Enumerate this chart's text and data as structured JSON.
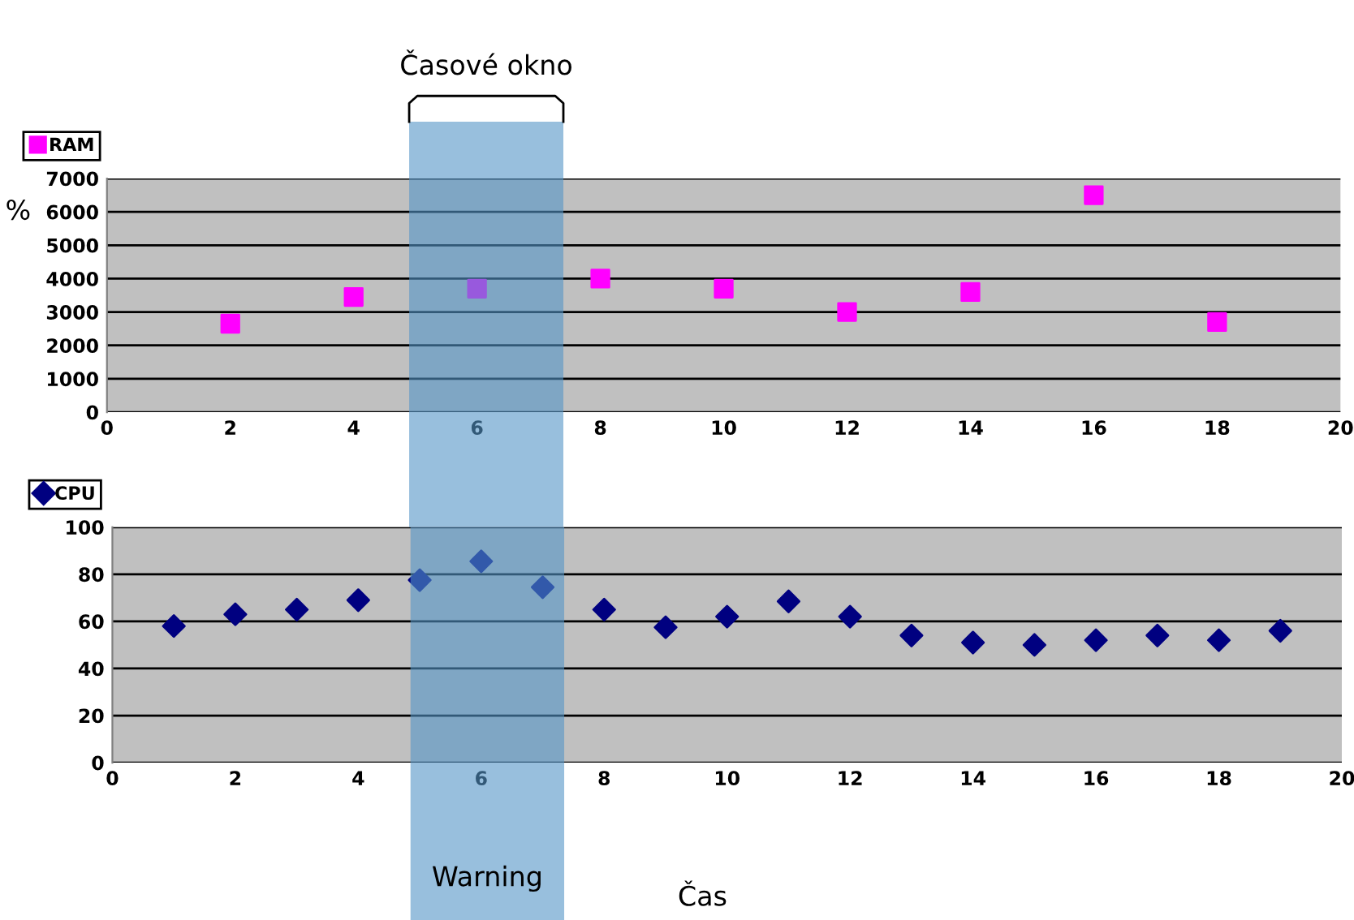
{
  "chart_data": [
    {
      "type": "scatter",
      "ylabel": "%",
      "x": [
        2,
        4,
        6,
        8,
        10,
        12,
        14,
        16,
        18
      ],
      "series": [
        {
          "name": "RAM",
          "color": "#ff00ff",
          "values": [
            2650,
            3450,
            3700,
            4000,
            3700,
            3000,
            3600,
            6500,
            2700
          ]
        }
      ],
      "marker": "square",
      "xlim": [
        0,
        20
      ],
      "xticks": [
        0,
        2,
        4,
        6,
        8,
        10,
        12,
        14,
        16,
        18,
        20
      ],
      "ylim": [
        0,
        7000
      ],
      "yticks": [
        0,
        1000,
        2000,
        3000,
        4000,
        5000,
        6000,
        7000
      ],
      "grid": "y",
      "legend": "top left",
      "annotations": [
        "Časové okno"
      ],
      "bands": [
        {
          "axis": "x",
          "from": 4.9,
          "to": 7.4,
          "color": "#5495c7"
        }
      ]
    },
    {
      "type": "scatter",
      "xlabel": "Čas",
      "x": [
        1,
        2,
        3,
        4,
        5,
        6,
        7,
        8,
        9,
        10,
        11,
        12,
        13,
        14,
        15,
        16,
        17,
        18,
        19
      ],
      "series": [
        {
          "name": "CPU",
          "color": "#000080",
          "values": [
            58,
            63,
            65,
            69,
            77.5,
            85.5,
            74.5,
            65,
            57.5,
            62,
            68.5,
            62,
            54,
            51,
            50,
            52,
            54,
            52,
            56
          ]
        }
      ],
      "marker": "diamond",
      "xlim": [
        0,
        20
      ],
      "xticks": [
        0,
        2,
        4,
        6,
        8,
        10,
        12,
        14,
        16,
        18,
        20
      ],
      "ylim": [
        0,
        100
      ],
      "yticks": [
        0,
        20,
        40,
        60,
        80,
        100
      ],
      "grid": "y",
      "legend": "top left",
      "annotations": [
        "Warning"
      ],
      "bands": [
        {
          "axis": "x",
          "from": 4.85,
          "to": 7.35,
          "color": "#5495c7"
        }
      ]
    }
  ]
}
